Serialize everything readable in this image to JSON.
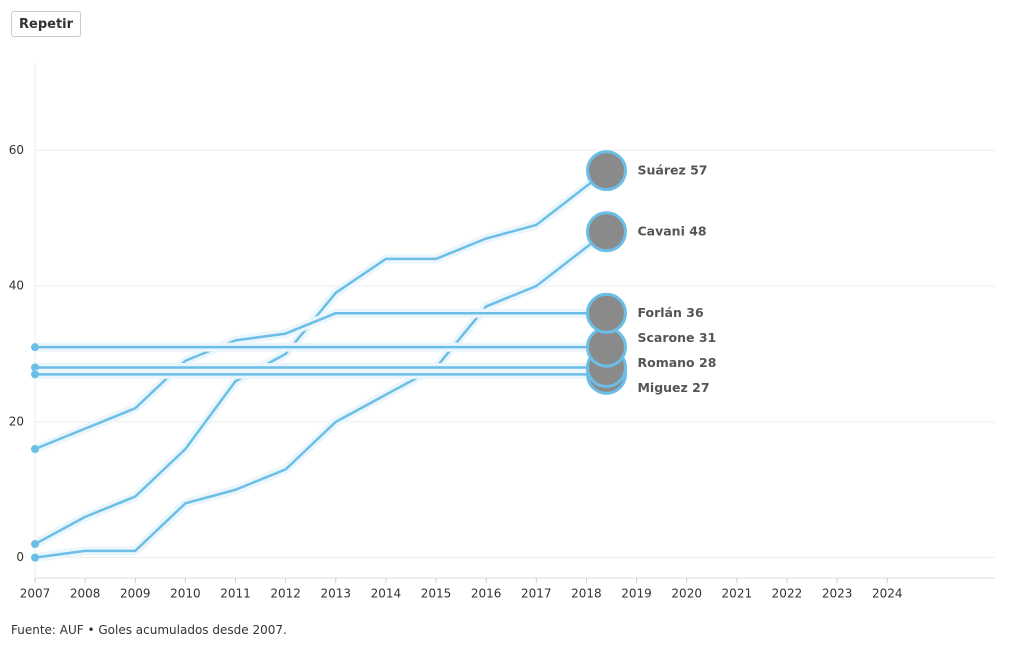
{
  "button": "Repetir",
  "footer": "Fuente: AUF • Goles acumulados desde 2007.",
  "chart_data": {
    "type": "line",
    "xlim": [
      2007,
      2026.15
    ],
    "xticks": [
      2007,
      2008,
      2009,
      2010,
      2011,
      2012,
      2013,
      2014,
      2015,
      2016,
      2017,
      2018,
      2019,
      2020,
      2021,
      2022,
      2023,
      2024
    ],
    "ylim": [
      -3,
      73
    ],
    "yticks": [
      0,
      20,
      40,
      60
    ],
    "grid": true,
    "color": "#6bbfe6",
    "series": [
      {
        "name": "Suárez",
        "x": [
          2007,
          2008,
          2009,
          2010,
          2011,
          2012,
          2013,
          2014,
          2015,
          2016,
          2017,
          2018.4
        ],
        "values": [
          2,
          6,
          9,
          16,
          26,
          30,
          39,
          44,
          44,
          47,
          49,
          57
        ]
      },
      {
        "name": "Cavani",
        "x": [
          2007,
          2008,
          2009,
          2010,
          2011,
          2012,
          2013,
          2014,
          2015,
          2016,
          2017,
          2018.4
        ],
        "values": [
          0,
          1,
          1,
          8,
          10,
          13,
          20,
          24,
          28,
          37,
          40,
          48
        ]
      },
      {
        "name": "Forlán",
        "x": [
          2007,
          2008,
          2009,
          2010,
          2011,
          2012,
          2013,
          2018.4
        ],
        "values": [
          16,
          19,
          22,
          29,
          32,
          33,
          36,
          36
        ]
      },
      {
        "name": "Scarone",
        "x": [
          2007,
          2018.4
        ],
        "values": [
          31,
          31
        ]
      },
      {
        "name": "Romano",
        "x": [
          2007,
          2018.4
        ],
        "values": [
          28,
          28
        ]
      },
      {
        "name": "Miguez",
        "x": [
          2007,
          2018.4
        ],
        "values": [
          27,
          27
        ]
      }
    ]
  }
}
